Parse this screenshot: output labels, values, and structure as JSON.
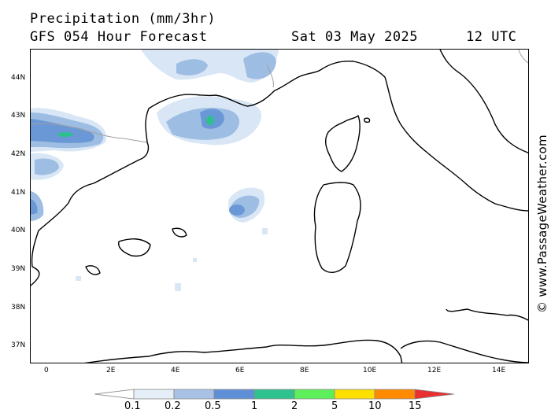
{
  "header": {
    "title": "Precipitation (mm/3hr)",
    "subtitle": "GFS 054 Hour Forecast",
    "date": "Sat 03 May 2025",
    "time": "12 UTC"
  },
  "map": {
    "lat_labels": [
      "44N",
      "43N",
      "42N",
      "41N",
      "40N",
      "39N",
      "38N",
      "37N"
    ],
    "lon_labels": [
      "0",
      "2E",
      "4E",
      "6E",
      "8E",
      "10E",
      "12E",
      "14E"
    ],
    "colors": {
      "coast": "#000000",
      "border": "#a0a0a0",
      "light_rain": "#d8e6f5",
      "moderate_rain": "#9dbde3",
      "heavy_rain": "#6a98d6",
      "very_heavy_rain": "#2dbf8c"
    }
  },
  "watermark": "© www.PassageWeather.com",
  "legend": {
    "labels": [
      "0.1",
      "0.2",
      "0.5",
      "1",
      "2",
      "5",
      "10",
      "15"
    ],
    "colors": [
      "#ffffff",
      "#e6eef8",
      "#a8c2e6",
      "#5f8fd6",
      "#2fc28e",
      "#5ef05a",
      "#ffe000",
      "#ff8a00",
      "#e83030"
    ]
  }
}
